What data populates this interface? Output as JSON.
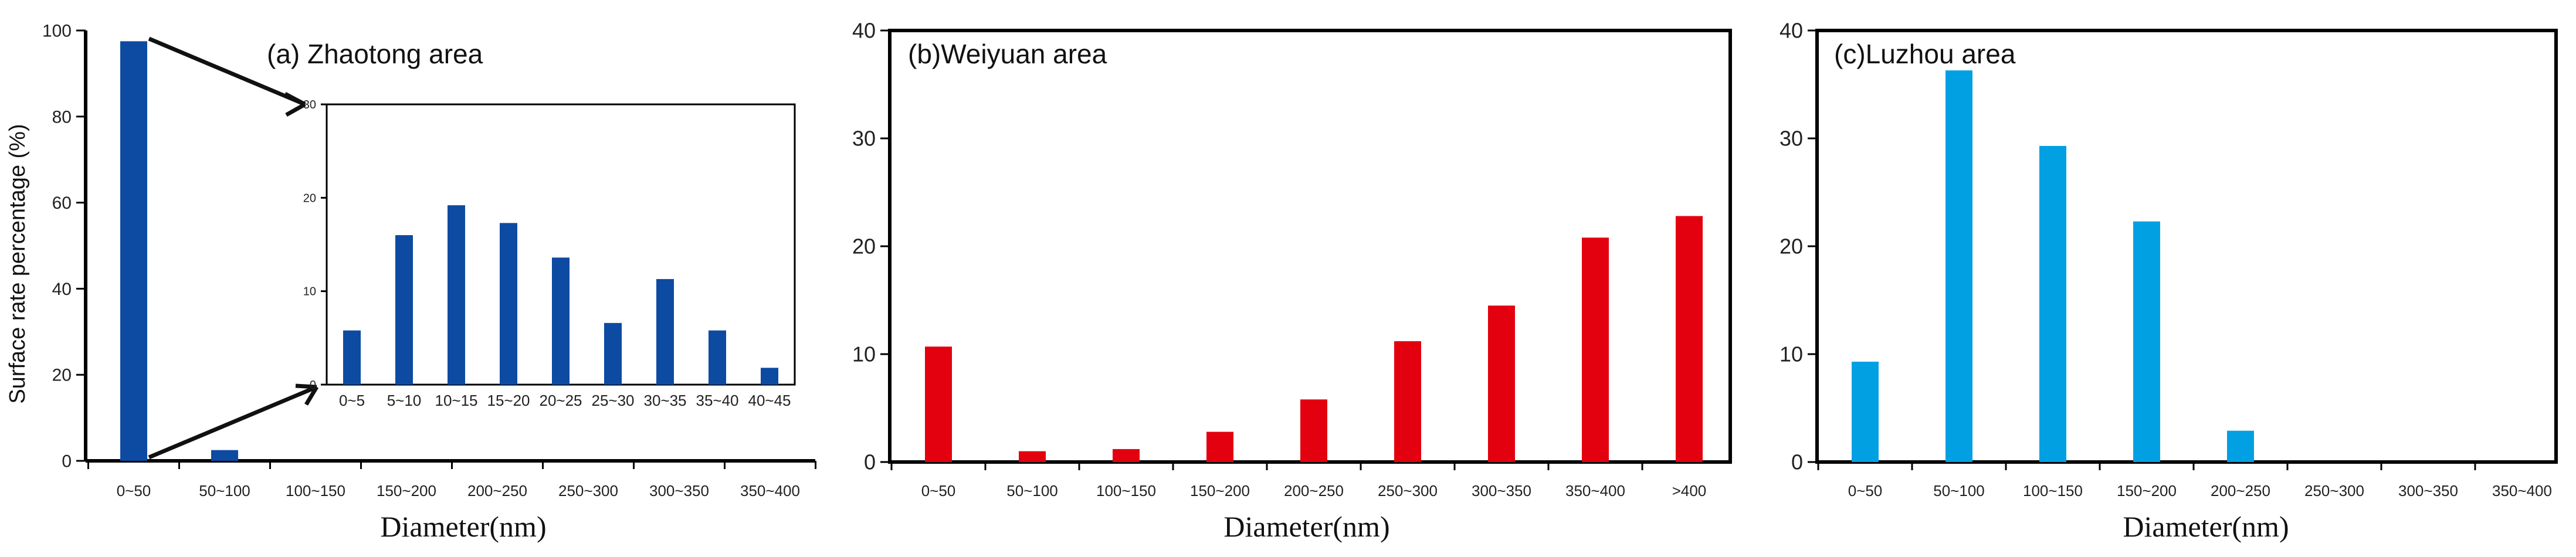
{
  "chart_data": [
    {
      "type": "bar",
      "title": "(a) Zhaotong area",
      "xlabel": "Diameter(nm)",
      "ylabel": "Surface rate percentage (%)",
      "ylim": [
        0,
        100
      ],
      "yticks": [
        0,
        20,
        40,
        60,
        80,
        100
      ],
      "categories": [
        "0~50",
        "50~100",
        "100~150",
        "150~200",
        "200~250",
        "250~300",
        "300~350",
        "350~400"
      ],
      "values": [
        97.5,
        2.5,
        0,
        0,
        0,
        0,
        0,
        0
      ],
      "color": "#0d4aa2",
      "inset": {
        "type": "bar",
        "categories": [
          "0~5",
          "5~10",
          "10~15",
          "15~20",
          "20~25",
          "25~30",
          "30~35",
          "35~40",
          "40~45"
        ],
        "values": [
          5.8,
          16,
          19.2,
          17.3,
          13.6,
          6.6,
          11.3,
          5.8,
          1.8
        ],
        "ylim": [
          0,
          30
        ],
        "yticks": [
          0,
          10,
          20,
          30
        ],
        "color": "#0d4aa2"
      }
    },
    {
      "type": "bar",
      "title": "(b)Weiyuan area",
      "xlabel": "Diameter(nm)",
      "ylabel": "",
      "ylim": [
        0,
        40
      ],
      "yticks": [
        0,
        10,
        20,
        30,
        40
      ],
      "categories": [
        "0~50",
        "50~100",
        "100~150",
        "150~200",
        "200~250",
        "250~300",
        "300~350",
        "350~400",
        ">400"
      ],
      "values": [
        10.7,
        1.0,
        1.2,
        2.8,
        5.8,
        11.2,
        14.5,
        20.8,
        22.8
      ],
      "color": "#e3000f"
    },
    {
      "type": "bar",
      "title": "(c)Luzhou area",
      "xlabel": "Diameter(nm)",
      "ylabel": "",
      "ylim": [
        0,
        40
      ],
      "yticks": [
        0,
        10,
        20,
        30,
        40
      ],
      "categories": [
        "0~50",
        "50~100",
        "100~150",
        "150~200",
        "200~250",
        "250~300",
        "300~350",
        "350~400"
      ],
      "values": [
        9.3,
        36.3,
        29.3,
        22.3,
        2.9,
        0,
        0,
        0
      ],
      "color": "#00a0e3"
    }
  ]
}
